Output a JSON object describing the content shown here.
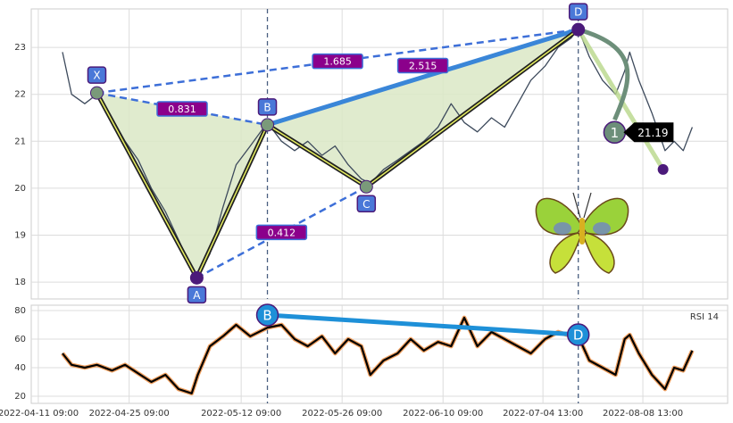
{
  "chart_data": [
    {
      "type": "price-pattern",
      "x": [
        31,
        40,
        53,
        65,
        80,
        93,
        106,
        119,
        133,
        146,
        159,
        165,
        177,
        190,
        203,
        217,
        234,
        248,
        261,
        274,
        288,
        301,
        314,
        327,
        336,
        349,
        363,
        376,
        389,
        403,
        416,
        429,
        442,
        456,
        469,
        482,
        495,
        509,
        522,
        535,
        542,
        553,
        566,
        579,
        588,
        593,
        602,
        615,
        628,
        637,
        646,
        655
      ],
      "values": [
        22.9,
        22.0,
        21.8,
        22.0,
        21.5,
        21.0,
        20.6,
        20.0,
        19.5,
        18.9,
        18.3,
        18.1,
        18.6,
        19.6,
        20.5,
        20.9,
        21.4,
        21.0,
        20.8,
        21.0,
        20.7,
        20.9,
        20.5,
        20.2,
        20.1,
        20.4,
        20.6,
        20.8,
        21.0,
        21.3,
        21.8,
        21.4,
        21.2,
        21.5,
        21.3,
        21.8,
        22.3,
        22.6,
        23.0,
        23.2,
        23.4,
        22.8,
        22.3,
        22.0,
        22.5,
        22.9,
        22.3,
        21.6,
        20.8,
        21.0,
        20.8,
        21.3
      ],
      "color": "#3d4a5c",
      "xlim": [
        0,
        690
      ],
      "ylim": [
        17.64,
        23.82
      ],
      "yticks": [
        18,
        19,
        20,
        21,
        22,
        23
      ],
      "grid": true,
      "pattern": [
        {
          "name": "X",
          "x": 65,
          "y": 22.03
        },
        {
          "name": "A",
          "x": 164,
          "y": 18.09
        },
        {
          "name": "B",
          "x": 234,
          "y": 21.35
        },
        {
          "name": "C",
          "x": 332,
          "y": 20.03
        },
        {
          "name": "D",
          "x": 542,
          "y": 23.38
        }
      ],
      "ratios": [
        0.831,
        0.412,
        1.685,
        2.515
      ],
      "projection": {
        "name": "1",
        "x": 578,
        "y": 21.19
      },
      "end_point": {
        "x": 626,
        "y": 20.4
      }
    },
    {
      "type": "rsi",
      "title": "RSI 14",
      "x": [
        31,
        40,
        53,
        65,
        80,
        93,
        106,
        119,
        133,
        146,
        159,
        165,
        177,
        190,
        203,
        217,
        234,
        248,
        261,
        274,
        288,
        301,
        314,
        327,
        336,
        349,
        363,
        376,
        389,
        403,
        416,
        429,
        442,
        456,
        469,
        482,
        495,
        509,
        522,
        535,
        542,
        553,
        566,
        579,
        588,
        593,
        602,
        615,
        628,
        637,
        646,
        655
      ],
      "values": [
        50,
        42,
        40,
        42,
        38,
        42,
        36,
        30,
        35,
        25,
        22,
        35,
        55,
        62,
        70,
        62,
        68,
        70,
        60,
        55,
        62,
        50,
        60,
        55,
        35,
        45,
        50,
        60,
        52,
        58,
        55,
        75,
        55,
        65,
        60,
        55,
        50,
        60,
        65,
        62,
        62,
        45,
        40,
        35,
        60,
        63,
        50,
        35,
        25,
        40,
        38,
        52
      ],
      "color": "#000000",
      "xlim": [
        0,
        690
      ],
      "ylim": [
        15,
        83.75
      ],
      "yticks": [
        20,
        40,
        60,
        80
      ],
      "grid": true,
      "xticks": [
        {
          "value": 7,
          "label": "2022-04-11 09:00"
        },
        {
          "value": 97,
          "label": "2022-04-25 09:00"
        },
        {
          "value": 208,
          "label": "2022-05-12 09:00"
        },
        {
          "value": 308,
          "label": "2022-05-26 09:00"
        },
        {
          "value": 408,
          "label": "2022-06-10 09:00"
        },
        {
          "value": 507,
          "label": "2022-07-04 13:00"
        },
        {
          "value": 606,
          "label": "2022-08-08 13:00"
        }
      ],
      "divergence": [
        {
          "name": "B",
          "x": 234,
          "y": 76.9
        },
        {
          "name": "D",
          "x": 542,
          "y": 63.1
        }
      ]
    }
  ]
}
